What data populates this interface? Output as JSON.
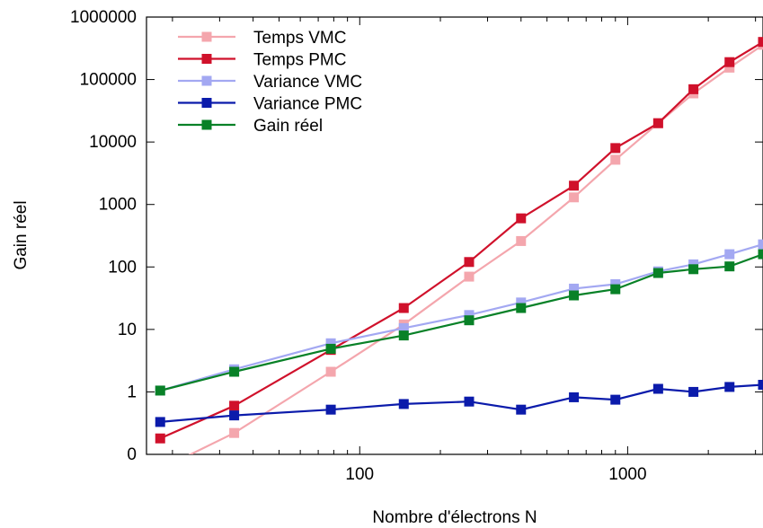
{
  "chart_data": {
    "type": "line",
    "title": "",
    "xlabel": "Nombre d'électrons N",
    "ylabel": "Gain réel",
    "x_scale": "log",
    "y_scale": "log",
    "xlim": [
      16,
      3200
    ],
    "ylim": [
      0.1,
      1000000
    ],
    "x_ticks": [
      {
        "value": 100,
        "label": "100"
      },
      {
        "value": 1000,
        "label": "1000"
      }
    ],
    "y_ticks": [
      {
        "value": 0.1,
        "label": "0"
      },
      {
        "value": 1,
        "label": "1"
      },
      {
        "value": 10,
        "label": "10"
      },
      {
        "value": 100,
        "label": "100"
      },
      {
        "value": 1000,
        "label": "1000"
      },
      {
        "value": 10000,
        "label": "10000"
      },
      {
        "value": 100000,
        "label": "100000"
      },
      {
        "value": 1000000,
        "label": "1000000"
      }
    ],
    "grid": false,
    "legend_position": "top-left",
    "series": [
      {
        "name": "Temps VMC",
        "color": "#f4a6ad",
        "points": [
          [
            16,
            0.045
          ],
          [
            34,
            0.22
          ],
          [
            78,
            2.1
          ],
          [
            146,
            12
          ],
          [
            256,
            70
          ],
          [
            400,
            260
          ],
          [
            630,
            1300
          ],
          [
            900,
            5200
          ],
          [
            1300,
            20000
          ],
          [
            1760,
            60000
          ],
          [
            2400,
            155000
          ],
          [
            3200,
            360000
          ]
        ]
      },
      {
        "name": "Temps PMC",
        "color": "#d0112b",
        "points": [
          [
            18,
            0.18
          ],
          [
            34,
            0.6
          ],
          [
            78,
            4.7
          ],
          [
            146,
            22
          ],
          [
            256,
            120
          ],
          [
            400,
            600
          ],
          [
            630,
            2000
          ],
          [
            900,
            8000
          ],
          [
            1300,
            20000
          ],
          [
            1760,
            70000
          ],
          [
            2400,
            190000
          ],
          [
            3200,
            400000
          ]
        ]
      },
      {
        "name": "Variance VMC",
        "color": "#a3a8f2",
        "points": [
          [
            18,
            1.05
          ],
          [
            34,
            2.3
          ],
          [
            78,
            6
          ],
          [
            146,
            10.5
          ],
          [
            256,
            17
          ],
          [
            400,
            27
          ],
          [
            630,
            45
          ],
          [
            900,
            53
          ],
          [
            1300,
            85
          ],
          [
            1760,
            110
          ],
          [
            2400,
            160
          ],
          [
            3200,
            230
          ]
        ]
      },
      {
        "name": "Variance PMC",
        "color": "#0b1bab",
        "points": [
          [
            18,
            0.33
          ],
          [
            34,
            0.42
          ],
          [
            78,
            0.52
          ],
          [
            146,
            0.64
          ],
          [
            256,
            0.7
          ],
          [
            400,
            0.52
          ],
          [
            630,
            0.82
          ],
          [
            900,
            0.75
          ],
          [
            1300,
            1.12
          ],
          [
            1760,
            1.0
          ],
          [
            2400,
            1.2
          ],
          [
            3200,
            1.3
          ]
        ]
      },
      {
        "name": "Gain réel",
        "color": "#088127",
        "points": [
          [
            18,
            1.05
          ],
          [
            34,
            2.1
          ],
          [
            78,
            4.9
          ],
          [
            146,
            8
          ],
          [
            256,
            14
          ],
          [
            400,
            22
          ],
          [
            630,
            35
          ],
          [
            900,
            44
          ],
          [
            1300,
            80
          ],
          [
            1760,
            92
          ],
          [
            2400,
            102
          ],
          [
            3200,
            160
          ]
        ]
      }
    ]
  }
}
